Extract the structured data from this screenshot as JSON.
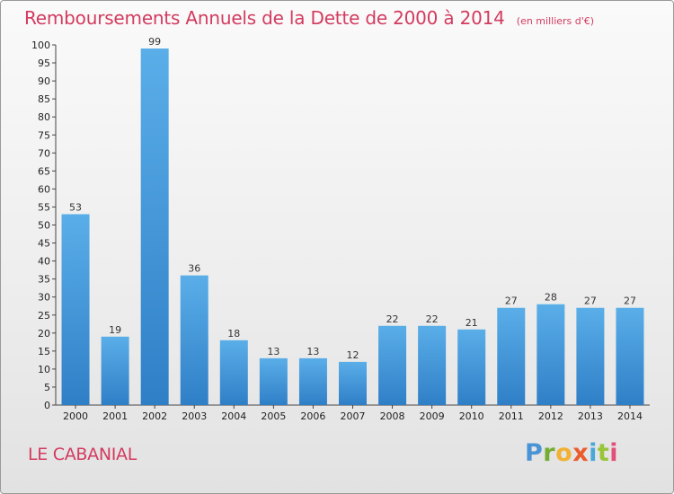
{
  "title": "Remboursements Annuels de la Dette de 2000 à 2014",
  "unit": "(en milliers d'€)",
  "commune": "LE CABANIAL",
  "logo": "Proxiti",
  "colors": {
    "bar": "#5aaee8",
    "bar_dark": "#2f7fc7",
    "title": "#d33b5f"
  },
  "chart_data": {
    "type": "bar",
    "title": "Remboursements Annuels de la Dette de 2000 à 2014",
    "subtitle": "(en milliers d'€)",
    "xlabel": "",
    "ylabel": "",
    "ylim": [
      0,
      100
    ],
    "yticks": [
      0,
      5,
      10,
      15,
      20,
      25,
      30,
      35,
      40,
      45,
      50,
      55,
      60,
      65,
      70,
      75,
      80,
      85,
      90,
      95,
      100
    ],
    "grid": false,
    "categories": [
      "2000",
      "2001",
      "2002",
      "2003",
      "2004",
      "2005",
      "2006",
      "2007",
      "2008",
      "2009",
      "2010",
      "2011",
      "2012",
      "2013",
      "2014"
    ],
    "values": [
      53,
      19,
      99,
      36,
      18,
      13,
      13,
      12,
      22,
      22,
      21,
      27,
      28,
      27,
      27
    ]
  }
}
